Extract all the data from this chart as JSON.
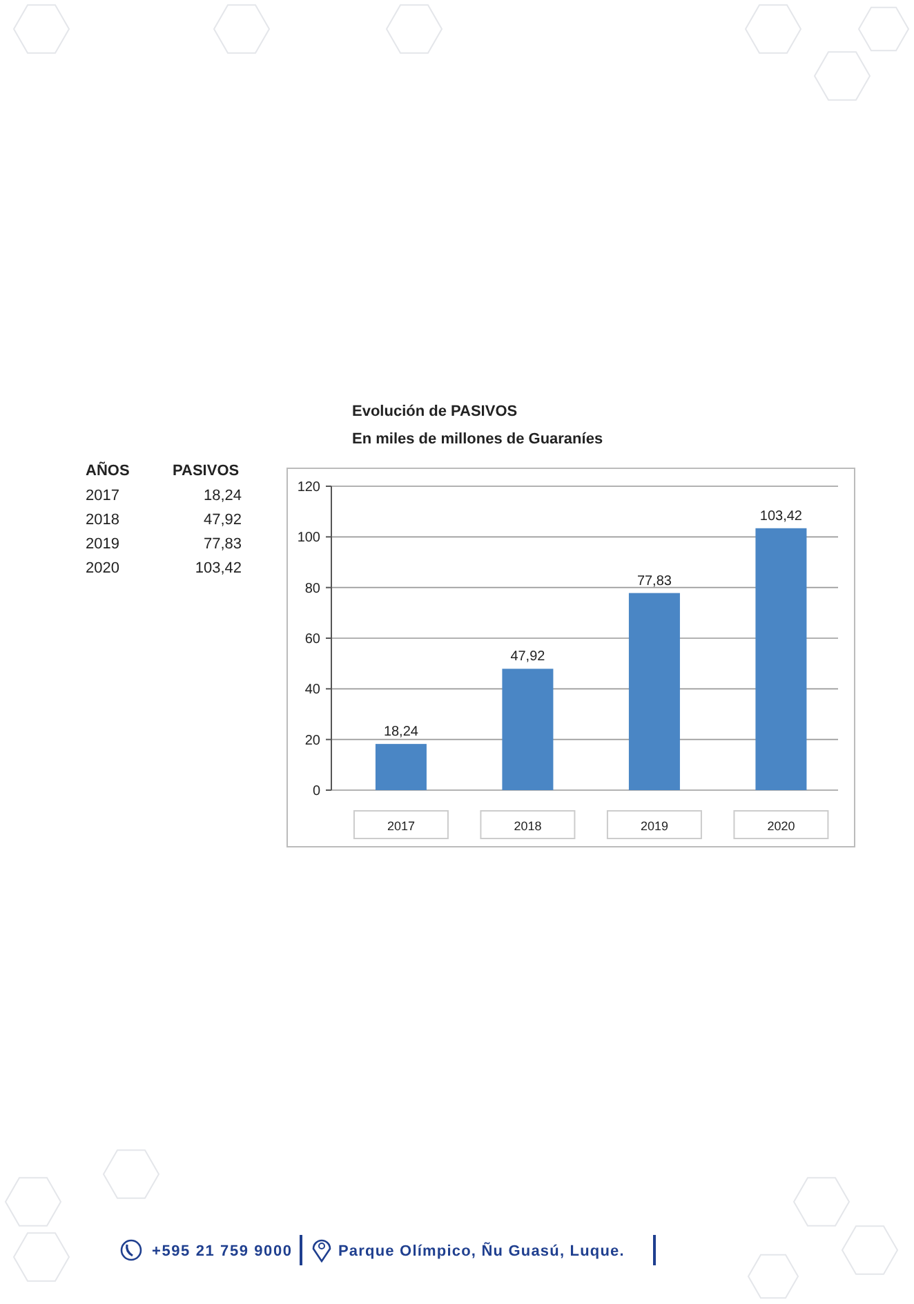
{
  "chart_data": {
    "type": "bar",
    "title": "Evolución de PASIVOS",
    "subtitle": "En miles de millones de Guaraníes",
    "categories": [
      "2017",
      "2018",
      "2019",
      "2020"
    ],
    "values": [
      18.24,
      47.92,
      77.83,
      103.42
    ],
    "value_labels": [
      "18,24",
      "47,92",
      "77,83",
      "103,42"
    ],
    "color": "#4a86c5",
    "ylim": [
      0,
      120
    ],
    "yticks": [
      0,
      20,
      40,
      60,
      80,
      100,
      120
    ],
    "grid": "y",
    "annotations": [
      "AÑOS",
      "PASIVOS",
      "+595 21 759 9000",
      "Parque Olímpico, Ñu Guasú, Luque."
    ]
  }
}
